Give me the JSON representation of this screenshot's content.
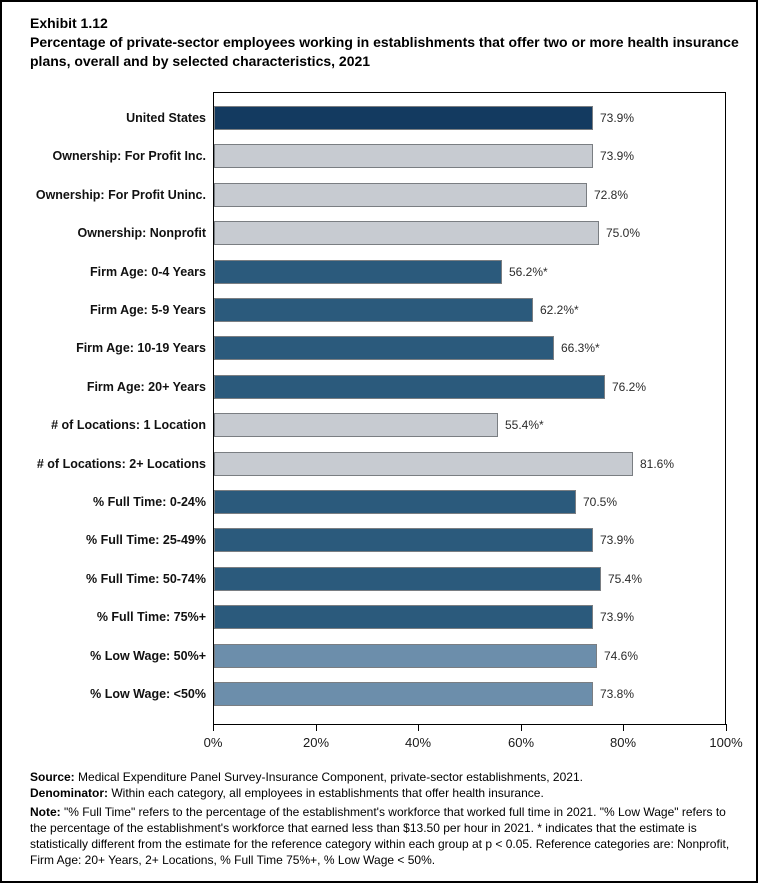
{
  "title": {
    "exhibit": "Exhibit 1.12",
    "subtitle": "Percentage of private-sector employees working in establishments that offer two or more health insurance plans, overall and by selected characteristics, 2021"
  },
  "chart_data": {
    "type": "bar",
    "orientation": "horizontal",
    "title": "Percentage of private-sector employees working in establishments that offer two or more health insurance plans, overall and by selected characteristics, 2021",
    "xlabel": "",
    "ylabel": "",
    "xlim": [
      0,
      100
    ],
    "x_tick_values": [
      0,
      20,
      40,
      60,
      80,
      100
    ],
    "x_tick_labels": [
      "0%",
      "20%",
      "40%",
      "60%",
      "80%",
      "100%"
    ],
    "grid": false,
    "legend": false,
    "rows": [
      {
        "category": "United States",
        "value": 73.9,
        "label": "73.9%",
        "color": "navy"
      },
      {
        "category": "Ownership: For Profit Inc.",
        "value": 73.9,
        "label": "73.9%",
        "color": "gray"
      },
      {
        "category": "Ownership: For Profit Uninc.",
        "value": 72.8,
        "label": "72.8%",
        "color": "gray"
      },
      {
        "category": "Ownership: Nonprofit",
        "value": 75.0,
        "label": "75.0%",
        "color": "gray"
      },
      {
        "category": "Firm Age: 0-4 Years",
        "value": 56.2,
        "label": "56.2%*",
        "color": "steel"
      },
      {
        "category": "Firm Age: 5-9 Years",
        "value": 62.2,
        "label": "62.2%*",
        "color": "steel"
      },
      {
        "category": "Firm Age: 10-19 Years",
        "value": 66.3,
        "label": "66.3%*",
        "color": "steel"
      },
      {
        "category": "Firm Age: 20+ Years",
        "value": 76.2,
        "label": "76.2%",
        "color": "steel"
      },
      {
        "category": "# of Locations: 1 Location",
        "value": 55.4,
        "label": "55.4%*",
        "color": "gray"
      },
      {
        "category": "# of Locations: 2+ Locations",
        "value": 81.6,
        "label": "81.6%",
        "color": "gray"
      },
      {
        "category": "% Full Time: 0-24%",
        "value": 70.5,
        "label": "70.5%",
        "color": "steel"
      },
      {
        "category": "% Full Time: 25-49%",
        "value": 73.9,
        "label": "73.9%",
        "color": "steel"
      },
      {
        "category": "% Full Time: 50-74%",
        "value": 75.4,
        "label": "75.4%",
        "color": "steel"
      },
      {
        "category": "% Full Time: 75%+",
        "value": 73.9,
        "label": "73.9%",
        "color": "steel"
      },
      {
        "category": "% Low Wage: 50%+",
        "value": 74.6,
        "label": "74.6%",
        "color": "light_steel"
      },
      {
        "category": "% Low Wage: <50%",
        "value": 73.8,
        "label": "73.8%",
        "color": "light_steel"
      }
    ],
    "colors": {
      "navy": "#133a60",
      "gray": "#c7cbd1",
      "steel": "#2b5a7c",
      "light_steel": "#6c8eab",
      "bar_border": "#7a7e82"
    }
  },
  "footer": {
    "source_label": "Source:",
    "source_text": " Medical Expenditure Panel Survey-Insurance Component, private-sector establishments, 2021.",
    "denominator_label": "Denominator:",
    "denominator_text": " Within each category, all employees in establishments that offer health insurance.",
    "note_label": "Note:",
    "note_text": " \"% Full Time\" refers to the percentage of the establishment's workforce that worked full time in 2021. \"% Low Wage\" refers to the percentage of the establishment's workforce that earned less than $13.50 per hour in 2021. * indicates that the estimate is statistically different from the estimate for the reference category within each group at p < 0.05.  Reference categories are: Nonprofit, Firm Age: 20+ Years, 2+ Locations, % Full Time 75%+, % Low Wage < 50%."
  }
}
